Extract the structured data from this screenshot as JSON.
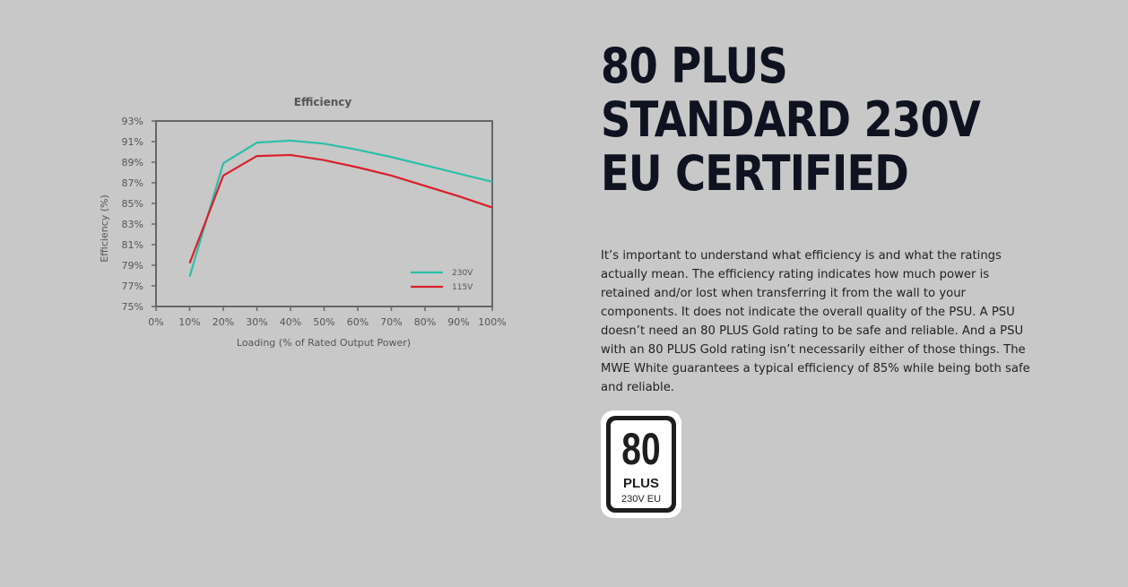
{
  "chart_data": {
    "type": "line",
    "title": "Efficiency",
    "xlabel": "Loading (% of Rated Output Power)",
    "ylabel": "Efficiency (%)",
    "x": [
      10,
      20,
      30,
      40,
      50,
      60,
      70,
      80,
      90,
      100
    ],
    "x_ticks": [
      "0%",
      "10%",
      "20%",
      "30%",
      "40%",
      "50%",
      "60%",
      "70%",
      "80%",
      "90%",
      "100%"
    ],
    "y_ticks": [
      "93%",
      "91%",
      "89%",
      "87%",
      "85%",
      "83%",
      "81%",
      "79%",
      "77%",
      "75%"
    ],
    "xlim": [
      0,
      100
    ],
    "ylim": [
      75,
      93
    ],
    "grid": false,
    "legend_position": "bottom-right",
    "series": [
      {
        "name": "230V",
        "color": "#2bbfaa",
        "values": [
          77.9,
          88.9,
          90.9,
          91.1,
          90.8,
          90.2,
          89.5,
          88.7,
          87.9,
          87.1
        ]
      },
      {
        "name": "115V",
        "color": "#d9202a",
        "values": [
          79.2,
          87.7,
          89.6,
          89.7,
          89.2,
          88.5,
          87.7,
          86.7,
          85.7,
          84.6
        ]
      }
    ]
  },
  "headline": {
    "line1": "80 PLUS",
    "line2": "STANDARD 230V",
    "line3": "EU CERTIFIED"
  },
  "body_text": "It’s important to understand what efficiency is and what the ratings actually mean. The efficiency rating indicates how much power is retained and/or lost when transferring it from the wall to your components. It does not indicate the overall quality of the PSU. A PSU doesn’t need an 80 PLUS Gold rating to be safe and reliable. And a PSU with an 80 PLUS Gold rating isn’t necessarily either of those things. The MWE White guarantees a typical efficiency of 85% while being both safe and reliable.",
  "badge": {
    "number": "80",
    "plus": "PLUS",
    "sub": "230V EU"
  }
}
